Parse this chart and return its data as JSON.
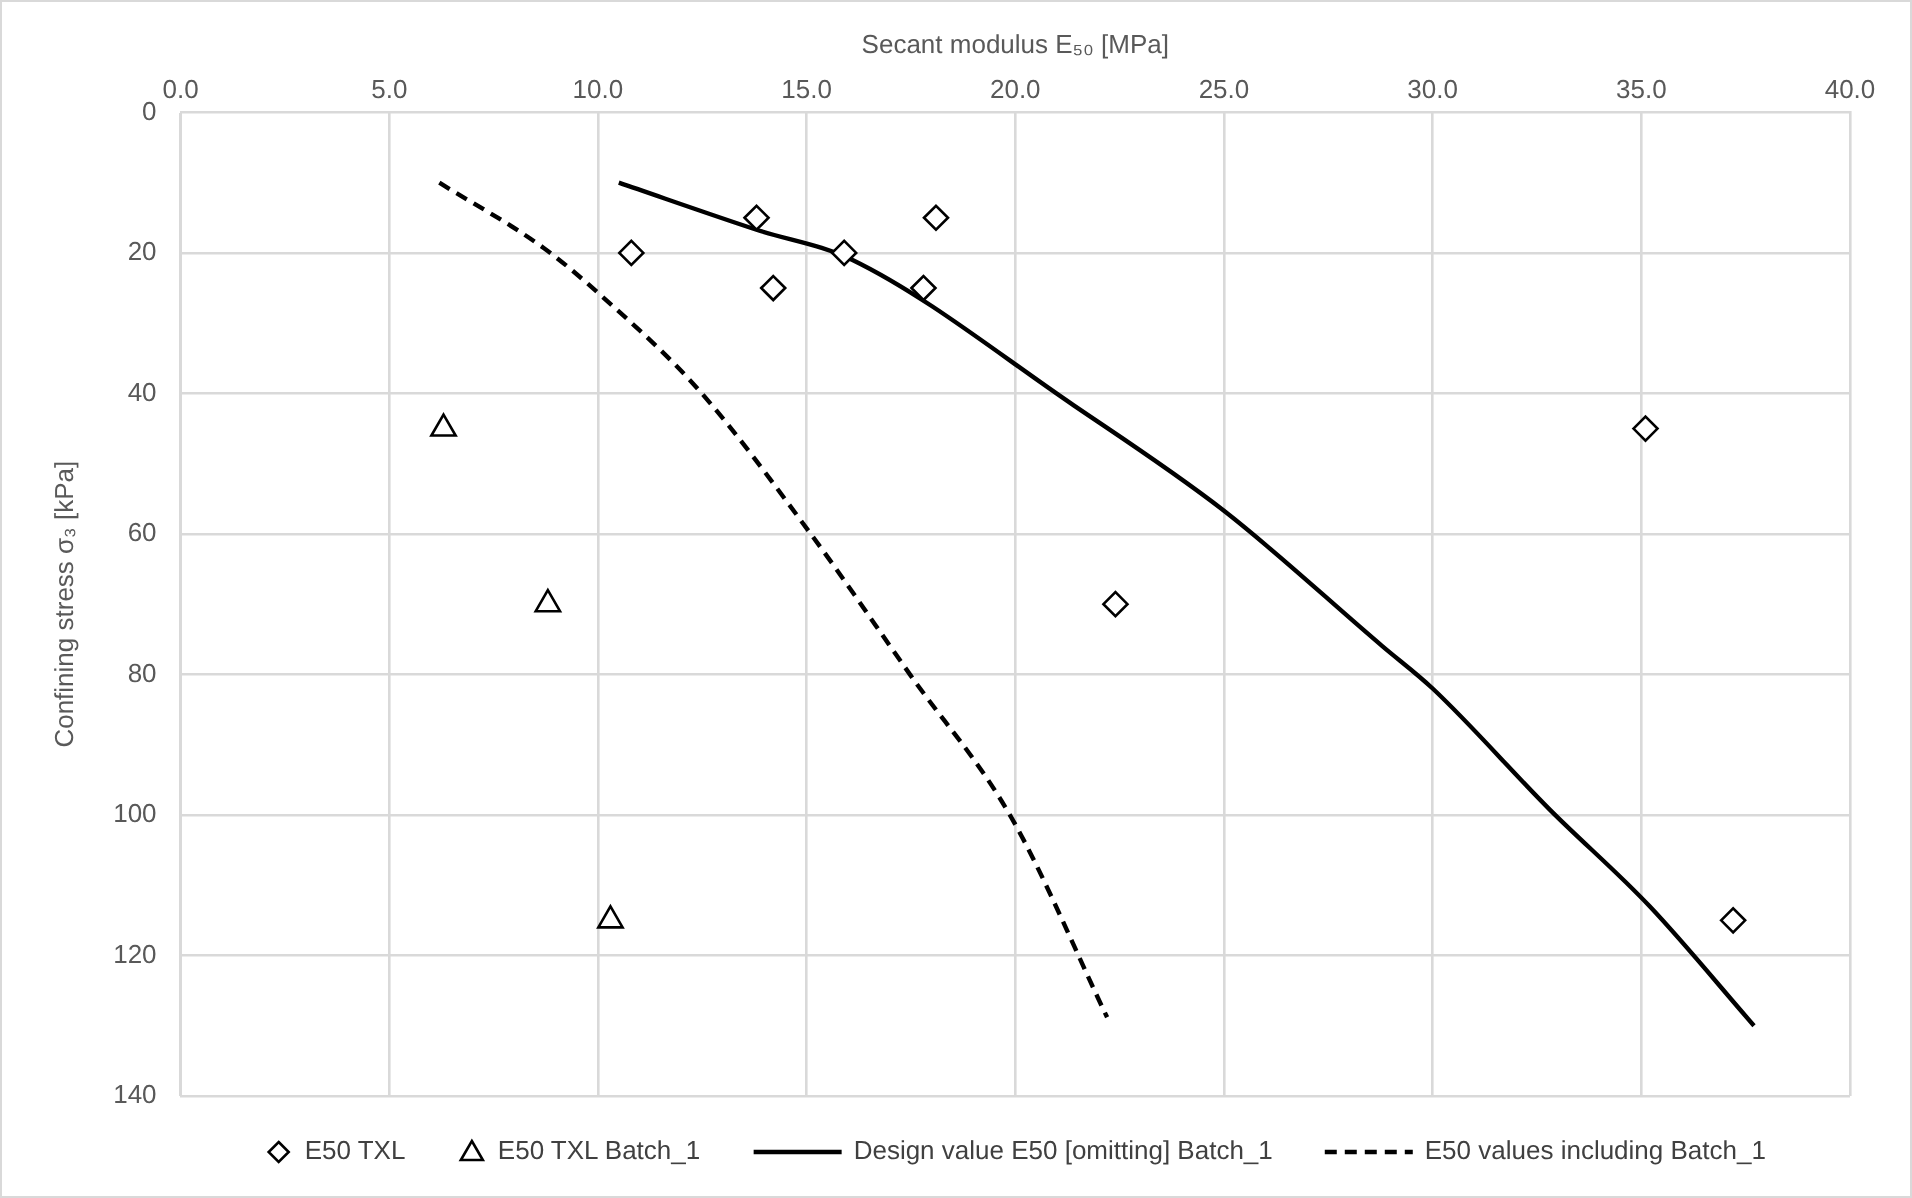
{
  "chart_data": {
    "type": "scatter",
    "xlabel": "Secant modulus E₅₀ [MPa]",
    "ylabel": "Confining stress σ₃ [kPa]",
    "xlim": [
      0,
      40
    ],
    "xticks": [
      {
        "value": 0,
        "label": "0.0"
      },
      {
        "value": 5,
        "label": "5.0"
      },
      {
        "value": 10,
        "label": "10.0"
      },
      {
        "value": 15,
        "label": "15.0"
      },
      {
        "value": 20,
        "label": "20.0"
      },
      {
        "value": 25,
        "label": "25.0"
      },
      {
        "value": 30,
        "label": "30.0"
      },
      {
        "value": 35,
        "label": "35.0"
      },
      {
        "value": 40,
        "label": "40.0"
      }
    ],
    "ylim": [
      140,
      0
    ],
    "yticks": [
      0,
      20,
      40,
      60,
      80,
      100,
      120,
      140
    ],
    "grid": true,
    "legend": "bottom",
    "series": [
      {
        "name": "E50 TXL",
        "type": "scatter",
        "marker": "diamond",
        "color": "#000000",
        "x": [
          10.8,
          13.8,
          14.2,
          15.9,
          18.1,
          17.8,
          22.4,
          35.1,
          37.2
        ],
        "values": [
          20,
          15,
          25,
          20,
          15,
          25,
          70,
          45,
          115
        ]
      },
      {
        "name": "E50 TXL Batch_1",
        "type": "scatter",
        "marker": "triangle",
        "color": "#000000",
        "x": [
          6.3,
          8.8,
          10.3
        ],
        "values": [
          45,
          70,
          115
        ]
      },
      {
        "name": "Design value E50 [omitting] Batch_1",
        "type": "line",
        "line_style": "solid",
        "color": "#000000",
        "x": [
          10.5,
          13.8,
          16.1,
          21.4,
          25.0,
          28.8,
          30.0,
          32.8,
          35.2,
          37.7
        ],
        "values": [
          10,
          16.7,
          21,
          41.7,
          56.7,
          76,
          82,
          99.2,
          113,
          130
        ]
      },
      {
        "name": "E50 values including Batch_1",
        "type": "line",
        "line_style": "dashed",
        "color": "#000000",
        "x": [
          6.2,
          8.7,
          10.1,
          12.4,
          15.1,
          17.5,
          19.9,
          22.2
        ],
        "values": [
          10,
          19.3,
          26.2,
          39.4,
          60,
          80.2,
          100.3,
          128.8
        ]
      }
    ]
  }
}
